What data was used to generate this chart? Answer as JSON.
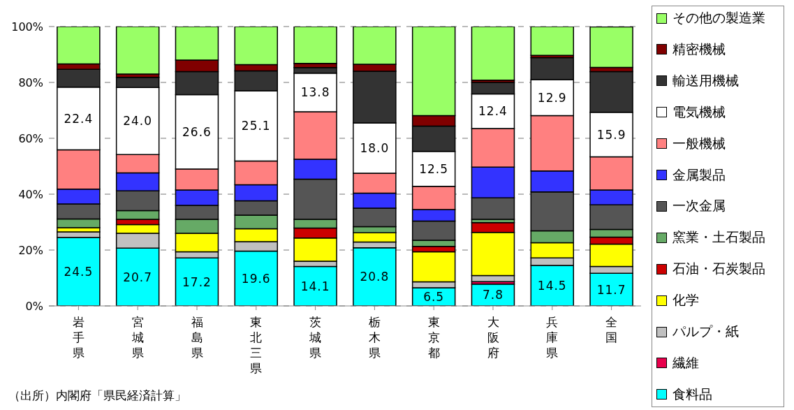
{
  "chart_data": {
    "type": "bar",
    "stacked": true,
    "categories": [
      "岩手県",
      "宮城県",
      "福島県",
      "東北三県",
      "茨城県",
      "栃木県",
      "東京都",
      "大阪府",
      "兵庫県",
      "全国"
    ],
    "series": [
      {
        "name": "食料品",
        "color": "#00ffff",
        "values": [
          24.5,
          20.7,
          17.2,
          19.6,
          14.1,
          20.8,
          6.5,
          7.8,
          14.5,
          11.7
        ],
        "value_labels": [
          "24.5",
          "20.7",
          "17.2",
          "19.6",
          "14.1",
          "20.8",
          "6.5",
          "7.8",
          "14.5",
          "11.7"
        ]
      },
      {
        "name": "繊維",
        "color": "#e8004c",
        "values": [
          null,
          null,
          null,
          null,
          null,
          null,
          null,
          0.9,
          null,
          null
        ]
      },
      {
        "name": "パルプ・紙",
        "color": "#c0c0c0",
        "values": [
          2.0,
          5.3,
          2.2,
          3.4,
          1.9,
          2.1,
          2.1,
          2.2,
          2.7,
          2.4
        ]
      },
      {
        "name": "化学",
        "color": "#ffff00",
        "values": [
          1.5,
          3.1,
          6.6,
          4.6,
          8.3,
          3.3,
          10.8,
          15.4,
          5.4,
          8.0
        ]
      },
      {
        "name": "石油・石炭製品",
        "color": "#cc0000",
        "values": [
          null,
          1.9,
          null,
          null,
          3.6,
          null,
          1.9,
          3.5,
          null,
          2.5
        ]
      },
      {
        "name": "窯業・土石製品",
        "color": "#66aa66",
        "values": [
          3.1,
          3.1,
          5.0,
          4.9,
          3.1,
          2.2,
          2.2,
          1.2,
          4.3,
          2.8
        ]
      },
      {
        "name": "一次金属",
        "color": "#555555",
        "values": [
          5.4,
          7.1,
          5.0,
          5.1,
          14.4,
          6.6,
          6.9,
          7.7,
          13.9,
          8.8
        ]
      },
      {
        "name": "金属製品",
        "color": "#3333ff",
        "values": [
          5.3,
          6.4,
          5.5,
          5.8,
          7.1,
          5.4,
          4.1,
          11.0,
          7.5,
          5.3
        ]
      },
      {
        "name": "一般機械",
        "color": "#ff8080",
        "values": [
          14.1,
          6.6,
          7.5,
          8.5,
          17.0,
          7.1,
          8.3,
          13.8,
          19.8,
          11.9
        ]
      },
      {
        "name": "電気機械",
        "color": "#ffffff",
        "values": [
          22.4,
          24.0,
          26.6,
          25.1,
          13.8,
          18.0,
          12.5,
          12.4,
          12.9,
          15.9
        ],
        "value_labels": [
          "22.4",
          "24.0",
          "26.6",
          "25.1",
          "13.8",
          "18.0",
          "12.5",
          "12.4",
          "12.9",
          "15.9"
        ]
      },
      {
        "name": "輸送用機械",
        "color": "#333333",
        "values": [
          6.4,
          3.6,
          8.3,
          7.1,
          2.0,
          18.5,
          9.1,
          4.1,
          7.9,
          14.6
        ]
      },
      {
        "name": "精密機械",
        "color": "#800000",
        "values": [
          1.9,
          1.2,
          4.1,
          2.3,
          1.5,
          2.5,
          3.7,
          0.8,
          0.8,
          1.5
        ]
      },
      {
        "name": "その他の製造業",
        "color": "#99ff66",
        "values": [
          13.4,
          17.0,
          12.0,
          13.6,
          13.2,
          13.5,
          31.9,
          19.2,
          10.3,
          14.5
        ]
      }
    ],
    "ylim": [
      0,
      100
    ],
    "yticks": [
      {
        "value": 0,
        "label": "0%"
      },
      {
        "value": 20,
        "label": "20%"
      },
      {
        "value": 40,
        "label": "40%"
      },
      {
        "value": 60,
        "label": "60%"
      },
      {
        "value": 80,
        "label": "80%"
      },
      {
        "value": 100,
        "label": "100%"
      }
    ],
    "grid": "y",
    "legend": "right",
    "annotations": [
      "（出所）内閣府「県民経済計算」"
    ]
  }
}
